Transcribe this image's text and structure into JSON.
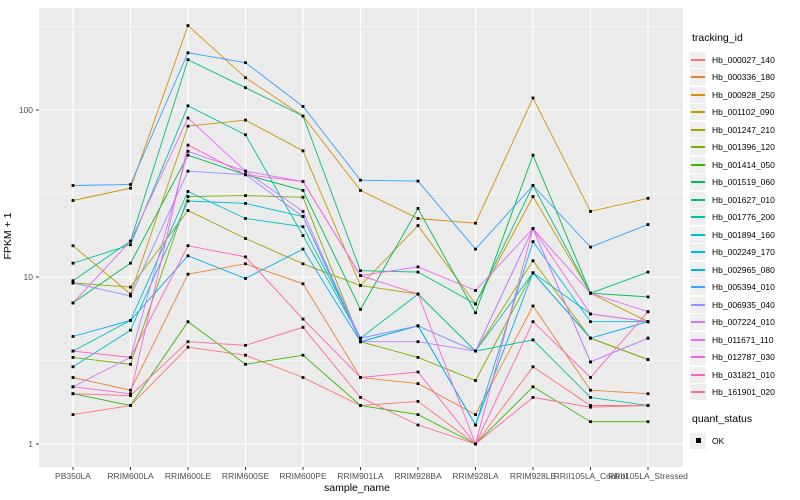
{
  "chart_data": {
    "type": "line",
    "title": "",
    "xlabel": "sample_name",
    "ylabel": "FPKM + 1",
    "y_scale": "log10",
    "y_ticks": [
      1,
      10,
      100
    ],
    "y_minor_ticks": [
      3.162,
      31.62,
      316.2
    ],
    "ylim": [
      0.72,
      410
    ],
    "grid": true,
    "legend_position": "right",
    "point_marker": "filled-black-square",
    "categories": [
      "PB350LA",
      "RRIM600LA",
      "RRIM600LE",
      "RRIM600SE",
      "RRIM600PE",
      "RRIM901LA",
      "RRIM928BA",
      "RRIM928LA",
      "RRIM928LE",
      "RRII105LA_Control",
      "RRII105LA_Stressed"
    ],
    "series": [
      {
        "name": "Hb_000027_140",
        "color": "#F8766D",
        "values": [
          1.5,
          1.7,
          3.8,
          3.4,
          2.5,
          1.7,
          1.8,
          1.0,
          2.9,
          1.7,
          1.7
        ]
      },
      {
        "name": "Hb_000336_180",
        "color": "#EA8331",
        "values": [
          2.5,
          2.1,
          10.4,
          12.0,
          9.1,
          2.5,
          2.3,
          1.5,
          6.7,
          2.1,
          2.0
        ]
      },
      {
        "name": "Hb_000928_250",
        "color": "#D89000",
        "values": [
          28.7,
          34.0,
          320.0,
          156.0,
          92.0,
          33.0,
          22.4,
          21.0,
          118.0,
          24.7,
          29.6
        ]
      },
      {
        "name": "Hb_001102_090",
        "color": "#C49A00",
        "values": [
          15.4,
          7.9,
          80.0,
          87.0,
          57.0,
          8.9,
          20.3,
          6.9,
          30.3,
          8.0,
          5.4
        ]
      },
      {
        "name": "Hb_001247_210",
        "color": "#A3A500",
        "values": [
          9.2,
          8.7,
          25.0,
          17.0,
          12.0,
          8.9,
          7.9,
          3.6,
          12.5,
          4.3,
          3.2
        ]
      },
      {
        "name": "Hb_001396_120",
        "color": "#7CAE00",
        "values": [
          3.3,
          3.0,
          30.3,
          30.7,
          30.0,
          4.1,
          3.3,
          2.4,
          10.6,
          4.3,
          3.2
        ]
      },
      {
        "name": "Hb_001414_050",
        "color": "#39B600",
        "values": [
          2.0,
          1.7,
          5.4,
          3.0,
          3.4,
          1.7,
          1.5,
          1.0,
          2.2,
          1.36,
          1.36
        ]
      },
      {
        "name": "Hb_001519_060",
        "color": "#00BB4E",
        "values": [
          7.0,
          12.1,
          53.6,
          41.0,
          33.0,
          6.4,
          25.7,
          6.1,
          53.6,
          8.0,
          7.6
        ]
      },
      {
        "name": "Hb_001627_010",
        "color": "#00BF7D",
        "values": [
          9.5,
          16.4,
          200.0,
          136.0,
          92.0,
          10.9,
          10.7,
          6.9,
          35.3,
          8.0,
          10.7
        ]
      },
      {
        "name": "Hb_001776_200",
        "color": "#00C1A3",
        "values": [
          12.1,
          15.6,
          106.0,
          71.0,
          17.7,
          4.3,
          7.9,
          3.6,
          4.2,
          1.9,
          1.7
        ]
      },
      {
        "name": "Hb_001894_160",
        "color": "#00BFC4",
        "values": [
          3.6,
          5.5,
          32.5,
          22.4,
          20.0,
          4.3,
          5.1,
          3.6,
          10.6,
          6.0,
          5.4
        ]
      },
      {
        "name": "Hb_002249_170",
        "color": "#00BAE0",
        "values": [
          2.9,
          4.8,
          28.5,
          27.6,
          23.0,
          4.1,
          5.1,
          1.3,
          16.3,
          5.4,
          5.4
        ]
      },
      {
        "name": "Hb_002965_080",
        "color": "#00B0F6",
        "values": [
          4.4,
          5.5,
          13.4,
          9.8,
          14.7,
          4.1,
          5.1,
          1.3,
          10.6,
          4.3,
          5.4
        ]
      },
      {
        "name": "Hb_005394_010",
        "color": "#35A2FF",
        "values": [
          35.3,
          35.8,
          220.0,
          192.0,
          105.0,
          38.0,
          37.5,
          14.7,
          35.3,
          15.1,
          20.6
        ]
      },
      {
        "name": "Hb_006935_040",
        "color": "#9590FF",
        "values": [
          9.2,
          7.7,
          43.0,
          41.0,
          23.0,
          4.3,
          5.1,
          3.6,
          19.5,
          3.1,
          4.3
        ]
      },
      {
        "name": "Hb_007224_010",
        "color": "#C77CFF",
        "values": [
          2.2,
          3.3,
          56.6,
          43.0,
          24.7,
          4.1,
          4.1,
          3.6,
          19.5,
          3.1,
          4.3
        ]
      },
      {
        "name": "Hb_011671_110",
        "color": "#E76BF3",
        "values": [
          7.0,
          16.4,
          89.5,
          43.0,
          37.3,
          10.2,
          11.5,
          8.3,
          19.5,
          8.0,
          6.2
        ]
      },
      {
        "name": "Hb_012787_030",
        "color": "#FA62DB",
        "values": [
          2.2,
          2.0,
          61.6,
          41.0,
          37.3,
          10.2,
          7.9,
          1.0,
          19.5,
          6.0,
          5.4
        ]
      },
      {
        "name": "Hb_031821_010",
        "color": "#FF62BC",
        "values": [
          3.6,
          3.3,
          15.4,
          13.2,
          5.6,
          2.5,
          2.7,
          1.0,
          5.4,
          2.5,
          6.2
        ]
      },
      {
        "name": "Hb_161901_020",
        "color": "#FF6A98",
        "values": [
          2.0,
          1.95,
          4.1,
          3.9,
          5.0,
          1.9,
          1.3,
          1.0,
          1.9,
          1.66,
          1.7
        ]
      }
    ]
  },
  "legend": {
    "tracking_title": "tracking_id",
    "quant_title": "quant_status",
    "quant_items": [
      "OK"
    ]
  },
  "theme": {
    "panel_bg": "#EBEBEB",
    "grid_color": "#FFFFFF",
    "tick_text_color": "#4D4D4D",
    "point_color": "#000000",
    "legend_key_bg": "#EFEFEF"
  }
}
